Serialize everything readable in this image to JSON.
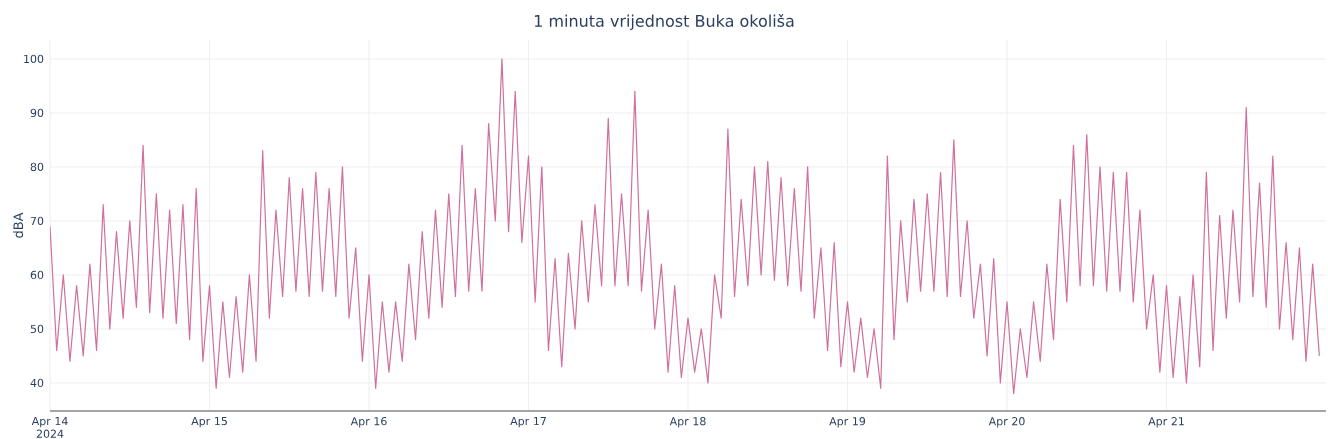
{
  "chart_data": {
    "type": "line",
    "title": "1 minuta vrijednost Buka okoliša",
    "ylabel": "dBA",
    "color": "#d0709c",
    "grid": true,
    "marker": "none",
    "line_style": "solid",
    "xlim": [
      "2024-04-14T00:00",
      "2024-04-22T00:00"
    ],
    "ylim": [
      34.8,
      103.5
    ],
    "xticks": [
      {
        "value": "2024-04-14",
        "label": "Apr 14 2024"
      },
      {
        "value": "2024-04-15",
        "label": "Apr 15"
      },
      {
        "value": "2024-04-16",
        "label": "Apr 16"
      },
      {
        "value": "2024-04-17",
        "label": "Apr 17"
      },
      {
        "value": "2024-04-18",
        "label": "Apr 18"
      },
      {
        "value": "2024-04-19",
        "label": "Apr 19"
      },
      {
        "value": "2024-04-20",
        "label": "Apr 20"
      },
      {
        "value": "2024-04-21",
        "label": "Apr 21"
      }
    ],
    "yticks": [
      40,
      50,
      60,
      70,
      80,
      90,
      100
    ],
    "x": [
      "2024-04-14T00:00",
      "2024-04-14T01:00",
      "2024-04-14T02:00",
      "2024-04-14T03:00",
      "2024-04-14T04:00",
      "2024-04-14T05:00",
      "2024-04-14T06:00",
      "2024-04-14T07:00",
      "2024-04-14T08:00",
      "2024-04-14T09:00",
      "2024-04-14T10:00",
      "2024-04-14T11:00",
      "2024-04-14T12:00",
      "2024-04-14T13:00",
      "2024-04-14T14:00",
      "2024-04-14T15:00",
      "2024-04-14T16:00",
      "2024-04-14T17:00",
      "2024-04-14T18:00",
      "2024-04-14T19:00",
      "2024-04-14T20:00",
      "2024-04-14T21:00",
      "2024-04-14T22:00",
      "2024-04-14T23:00",
      "2024-04-15T00:00",
      "2024-04-15T01:00",
      "2024-04-15T02:00",
      "2024-04-15T03:00",
      "2024-04-15T04:00",
      "2024-04-15T05:00",
      "2024-04-15T06:00",
      "2024-04-15T07:00",
      "2024-04-15T08:00",
      "2024-04-15T09:00",
      "2024-04-15T10:00",
      "2024-04-15T11:00",
      "2024-04-15T12:00",
      "2024-04-15T13:00",
      "2024-04-15T14:00",
      "2024-04-15T15:00",
      "2024-04-15T16:00",
      "2024-04-15T17:00",
      "2024-04-15T18:00",
      "2024-04-15T19:00",
      "2024-04-15T20:00",
      "2024-04-15T21:00",
      "2024-04-15T22:00",
      "2024-04-15T23:00",
      "2024-04-16T00:00",
      "2024-04-16T01:00",
      "2024-04-16T02:00",
      "2024-04-16T03:00",
      "2024-04-16T04:00",
      "2024-04-16T05:00",
      "2024-04-16T06:00",
      "2024-04-16T07:00",
      "2024-04-16T08:00",
      "2024-04-16T09:00",
      "2024-04-16T10:00",
      "2024-04-16T11:00",
      "2024-04-16T12:00",
      "2024-04-16T13:00",
      "2024-04-16T14:00",
      "2024-04-16T15:00",
      "2024-04-16T16:00",
      "2024-04-16T17:00",
      "2024-04-16T18:00",
      "2024-04-16T19:00",
      "2024-04-16T20:00",
      "2024-04-16T21:00",
      "2024-04-16T22:00",
      "2024-04-16T23:00",
      "2024-04-17T00:00",
      "2024-04-17T01:00",
      "2024-04-17T02:00",
      "2024-04-17T03:00",
      "2024-04-17T04:00",
      "2024-04-17T05:00",
      "2024-04-17T06:00",
      "2024-04-17T07:00",
      "2024-04-17T08:00",
      "2024-04-17T09:00",
      "2024-04-17T10:00",
      "2024-04-17T11:00",
      "2024-04-17T12:00",
      "2024-04-17T13:00",
      "2024-04-17T14:00",
      "2024-04-17T15:00",
      "2024-04-17T16:00",
      "2024-04-17T17:00",
      "2024-04-17T18:00",
      "2024-04-17T19:00",
      "2024-04-17T20:00",
      "2024-04-17T21:00",
      "2024-04-17T22:00",
      "2024-04-17T23:00",
      "2024-04-18T00:00",
      "2024-04-18T01:00",
      "2024-04-18T02:00",
      "2024-04-18T03:00",
      "2024-04-18T04:00",
      "2024-04-18T05:00",
      "2024-04-18T06:00",
      "2024-04-18T07:00",
      "2024-04-18T08:00",
      "2024-04-18T09:00",
      "2024-04-18T10:00",
      "2024-04-18T11:00",
      "2024-04-18T12:00",
      "2024-04-18T13:00",
      "2024-04-18T14:00",
      "2024-04-18T15:00",
      "2024-04-18T16:00",
      "2024-04-18T17:00",
      "2024-04-18T18:00",
      "2024-04-18T19:00",
      "2024-04-18T20:00",
      "2024-04-18T21:00",
      "2024-04-18T22:00",
      "2024-04-18T23:00",
      "2024-04-19T00:00",
      "2024-04-19T01:00",
      "2024-04-19T02:00",
      "2024-04-19T03:00",
      "2024-04-19T04:00",
      "2024-04-19T05:00",
      "2024-04-19T06:00",
      "2024-04-19T07:00",
      "2024-04-19T08:00",
      "2024-04-19T09:00",
      "2024-04-19T10:00",
      "2024-04-19T11:00",
      "2024-04-19T12:00",
      "2024-04-19T13:00",
      "2024-04-19T14:00",
      "2024-04-19T15:00",
      "2024-04-19T16:00",
      "2024-04-19T17:00",
      "2024-04-19T18:00",
      "2024-04-19T19:00",
      "2024-04-19T20:00",
      "2024-04-19T21:00",
      "2024-04-19T22:00",
      "2024-04-19T23:00",
      "2024-04-20T00:00",
      "2024-04-20T01:00",
      "2024-04-20T02:00",
      "2024-04-20T03:00",
      "2024-04-20T04:00",
      "2024-04-20T05:00",
      "2024-04-20T06:00",
      "2024-04-20T07:00",
      "2024-04-20T08:00",
      "2024-04-20T09:00",
      "2024-04-20T10:00",
      "2024-04-20T11:00",
      "2024-04-20T12:00",
      "2024-04-20T13:00",
      "2024-04-20T14:00",
      "2024-04-20T15:00",
      "2024-04-20T16:00",
      "2024-04-20T17:00",
      "2024-04-20T18:00",
      "2024-04-20T19:00",
      "2024-04-20T20:00",
      "2024-04-20T21:00",
      "2024-04-20T22:00",
      "2024-04-20T23:00",
      "2024-04-21T00:00",
      "2024-04-21T01:00",
      "2024-04-21T02:00",
      "2024-04-21T03:00",
      "2024-04-21T04:00",
      "2024-04-21T05:00",
      "2024-04-21T06:00",
      "2024-04-21T07:00",
      "2024-04-21T08:00",
      "2024-04-21T09:00",
      "2024-04-21T10:00",
      "2024-04-21T11:00",
      "2024-04-21T12:00",
      "2024-04-21T13:00",
      "2024-04-21T14:00",
      "2024-04-21T15:00",
      "2024-04-21T16:00",
      "2024-04-21T17:00",
      "2024-04-21T18:00",
      "2024-04-21T19:00",
      "2024-04-21T20:00",
      "2024-04-21T21:00",
      "2024-04-21T22:00",
      "2024-04-21T23:00"
    ],
    "values": [
      69,
      46,
      60,
      44,
      58,
      45,
      62,
      46,
      73,
      50,
      68,
      52,
      70,
      54,
      84,
      53,
      75,
      52,
      72,
      51,
      73,
      48,
      76,
      44,
      58,
      39,
      55,
      41,
      56,
      42,
      60,
      44,
      83,
      52,
      72,
      56,
      78,
      57,
      76,
      56,
      79,
      57,
      76,
      56,
      80,
      52,
      65,
      44,
      60,
      39,
      55,
      42,
      55,
      44,
      62,
      48,
      68,
      52,
      72,
      54,
      75,
      56,
      84,
      57,
      76,
      57,
      88,
      70,
      100,
      68,
      94,
      66,
      82,
      55,
      80,
      46,
      63,
      43,
      64,
      50,
      70,
      55,
      73,
      58,
      89,
      58,
      75,
      58,
      94,
      57,
      72,
      50,
      62,
      42,
      58,
      41,
      52,
      42,
      50,
      40,
      60,
      52,
      87,
      56,
      74,
      58,
      80,
      60,
      81,
      59,
      78,
      58,
      76,
      57,
      80,
      52,
      65,
      46,
      66,
      43,
      55,
      42,
      52,
      41,
      50,
      39,
      82,
      48,
      70,
      55,
      74,
      57,
      75,
      57,
      79,
      56,
      85,
      56,
      70,
      52,
      62,
      45,
      63,
      40,
      55,
      38,
      50,
      41,
      55,
      44,
      62,
      48,
      74,
      55,
      84,
      58,
      86,
      58,
      80,
      57,
      79,
      57,
      79,
      55,
      72,
      50,
      60,
      42,
      58,
      41,
      56,
      40,
      60,
      43,
      79,
      46,
      71,
      52,
      72,
      55,
      91,
      56,
      77,
      54,
      82,
      50,
      66,
      48,
      65,
      44,
      62,
      45
    ]
  }
}
